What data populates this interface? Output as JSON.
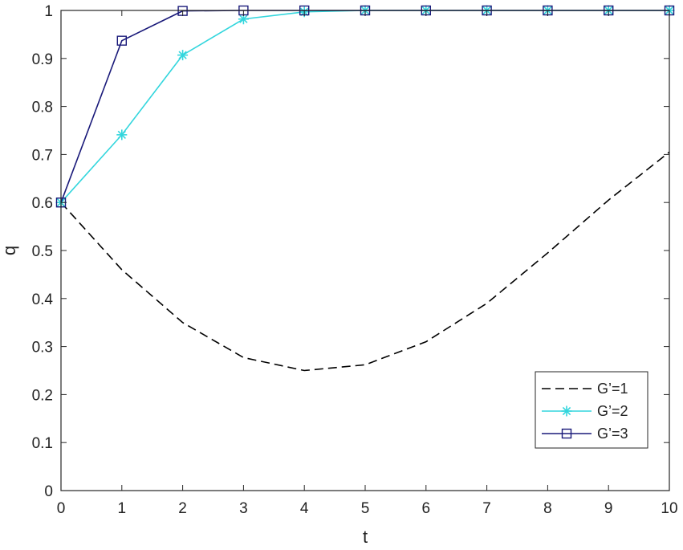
{
  "chart_data": {
    "type": "line",
    "title": "",
    "xlabel": "t",
    "ylabel": "q",
    "xlim": [
      0,
      10
    ],
    "ylim": [
      0,
      1
    ],
    "xticks": [
      "0",
      "1",
      "2",
      "3",
      "4",
      "5",
      "6",
      "7",
      "8",
      "9",
      "10"
    ],
    "yticks": [
      "0",
      "0.1",
      "0.2",
      "0.3",
      "0.4",
      "0.5",
      "0.6",
      "0.7",
      "0.8",
      "0.9",
      "1"
    ],
    "grid": false,
    "legend_position": "bottom-right",
    "series": [
      {
        "name": "G’=1",
        "color": "#000000",
        "line": "dashed",
        "marker": "none",
        "x": [
          0,
          1,
          2,
          3,
          4,
          5,
          6,
          7,
          8,
          9,
          10
        ],
        "y": [
          0.6,
          0.46,
          0.35,
          0.277,
          0.25,
          0.262,
          0.31,
          0.39,
          0.495,
          0.605,
          0.705
        ]
      },
      {
        "name": "G’=2",
        "color": "#33d6dd",
        "line": "solid",
        "marker": "asterisk",
        "x": [
          0,
          1,
          2,
          3,
          4,
          5,
          6,
          7,
          8,
          9,
          10
        ],
        "y": [
          0.6,
          0.741,
          0.907,
          0.982,
          0.997,
          1.0,
          1.0,
          1.0,
          1.0,
          1.0,
          1.0
        ]
      },
      {
        "name": "G’=3",
        "color": "#1a1a7a",
        "line": "solid",
        "marker": "square",
        "x": [
          0,
          1,
          2,
          3,
          4,
          5,
          6,
          7,
          8,
          9,
          10
        ],
        "y": [
          0.6,
          0.937,
          0.999,
          1.0,
          1.0,
          1.0,
          1.0,
          1.0,
          1.0,
          1.0,
          1.0
        ]
      }
    ]
  }
}
